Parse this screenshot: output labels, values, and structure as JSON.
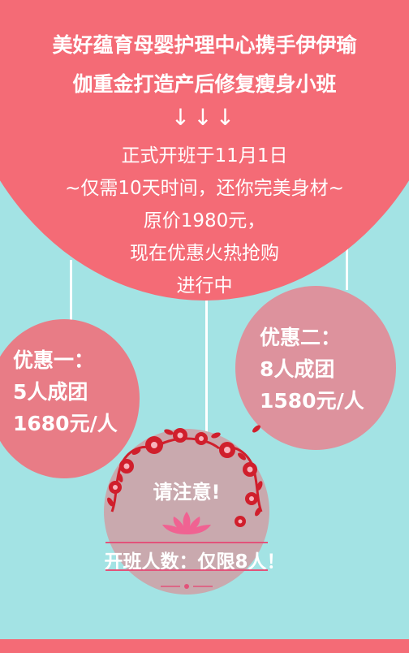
{
  "header": {
    "title_line1": "美好蕴育母婴护理中心携手伊伊瑜",
    "title_line2": "伽重金打造产后修复瘦身小班",
    "arrows": "↓↓↓"
  },
  "info": {
    "start": "正式开班于11月1日",
    "days": "~仅需10天时间，还你完美身材~",
    "original_price": "原价1980元，",
    "promo": "现在优惠火热抢购",
    "ongoing": "进行中"
  },
  "offer1": {
    "label": "优惠一：",
    "group": "5人成团",
    "price": "1680元/人"
  },
  "offer2": {
    "label": "优惠二：",
    "group": "8人成团",
    "price": "1580元/人"
  },
  "note": {
    "title": "请注意!",
    "limit": "开班人数：仅限8人！"
  },
  "colors": {
    "background": "#a3e3e4",
    "hero": "#f46b76",
    "offer1_circle": "#e87c86",
    "offer2_circle": "#dd929d",
    "note_circle": "#c9a9ae",
    "flower": "#d01f2c"
  }
}
